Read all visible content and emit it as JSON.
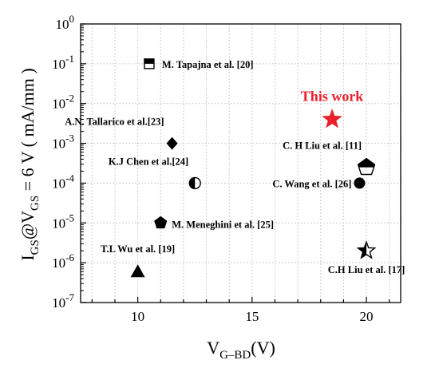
{
  "chart_data": {
    "type": "scatter",
    "xlabel": {
      "main": "V",
      "sub": "G–BD",
      "tail": "(V)"
    },
    "ylabel": {
      "p1": "I",
      "s1": "GS",
      "p2": "@V",
      "s2": "GS",
      "p3": " = 6 V ( mA/mm )"
    },
    "xlim": [
      7.5,
      21.5
    ],
    "ylim": [
      1e-07,
      1
    ],
    "yscale": "log",
    "grid": true,
    "x_ticks": [
      {
        "value": 10,
        "label": "10"
      },
      {
        "value": 15,
        "label": "15"
      },
      {
        "value": 20,
        "label": "20"
      }
    ],
    "y_ticks": [
      {
        "value": 1,
        "base": "10",
        "exp": "0"
      },
      {
        "value": 0.1,
        "base": "10",
        "exp": "-1"
      },
      {
        "value": 0.01,
        "base": "10",
        "exp": "-2"
      },
      {
        "value": 0.001,
        "base": "10",
        "exp": "-3"
      },
      {
        "value": 0.0001,
        "base": "10",
        "exp": "-4"
      },
      {
        "value": 1e-05,
        "base": "10",
        "exp": "-5"
      },
      {
        "value": 1e-06,
        "base": "10",
        "exp": "-6"
      },
      {
        "value": 1e-07,
        "base": "10",
        "exp": "-7"
      }
    ],
    "points": [
      {
        "x": 10.5,
        "y": 0.1,
        "label": "M. Tapajna et al. [20]",
        "marker": "square-top-half",
        "color": "#000000"
      },
      {
        "x": 18.5,
        "y": 0.004,
        "label": "This work",
        "marker": "star",
        "color": "#e8202a",
        "highlight": true
      },
      {
        "x": 11.5,
        "y": 0.001,
        "label": "A.N. Tallarico et al.[23]",
        "marker": "diamond",
        "color": "#000000"
      },
      {
        "x": 20.0,
        "y": 0.00025,
        "label": "C. H Liu et al. [11]",
        "marker": "pentagon-bottom-half",
        "color": "#000000"
      },
      {
        "x": 12.5,
        "y": 0.0001,
        "label": "K.J Chen et al.[24]",
        "marker": "circle-left-half",
        "color": "#000000"
      },
      {
        "x": 19.7,
        "y": 0.0001,
        "label": "C. Wang et al. [26]",
        "marker": "circle",
        "color": "#000000"
      },
      {
        "x": 11.0,
        "y": 1e-05,
        "label": "M. Meneghini et al. [25]",
        "marker": "pentagon",
        "color": "#000000"
      },
      {
        "x": 10.0,
        "y": 6e-07,
        "label": "T.L Wu et al. [19]",
        "marker": "triangle",
        "color": "#000000"
      },
      {
        "x": 20.0,
        "y": 2e-06,
        "label": "C.H Liu et al. [17]",
        "marker": "star-half",
        "color": "#000000"
      }
    ]
  }
}
